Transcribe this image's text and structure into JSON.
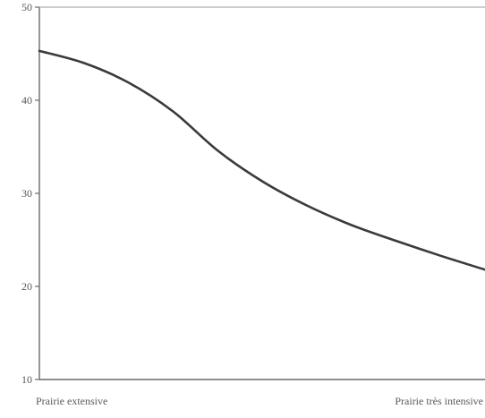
{
  "chart_data": {
    "type": "line",
    "title": "",
    "xlabel": "",
    "ylabel": "",
    "x_ticks": [
      "Prairie extensive",
      "Prairie très intensive"
    ],
    "x": [
      0,
      0.1,
      0.2,
      0.3,
      0.4,
      0.5,
      0.6,
      0.7,
      0.8,
      0.9,
      1.0
    ],
    "series": [
      {
        "values": [
          45.3,
          44.0,
          41.9,
          38.8,
          34.6,
          31.3,
          28.7,
          26.6,
          24.9,
          23.3,
          21.8
        ]
      }
    ],
    "xlim": [
      0,
      1
    ],
    "ylim": [
      10,
      50
    ],
    "y_ticks": [
      10,
      20,
      30,
      40,
      50
    ],
    "grid": false,
    "legend": "none",
    "colors": {
      "line": "#3a3a3a",
      "axis": "#6a6a6a",
      "text": "#5a5a5a"
    }
  }
}
